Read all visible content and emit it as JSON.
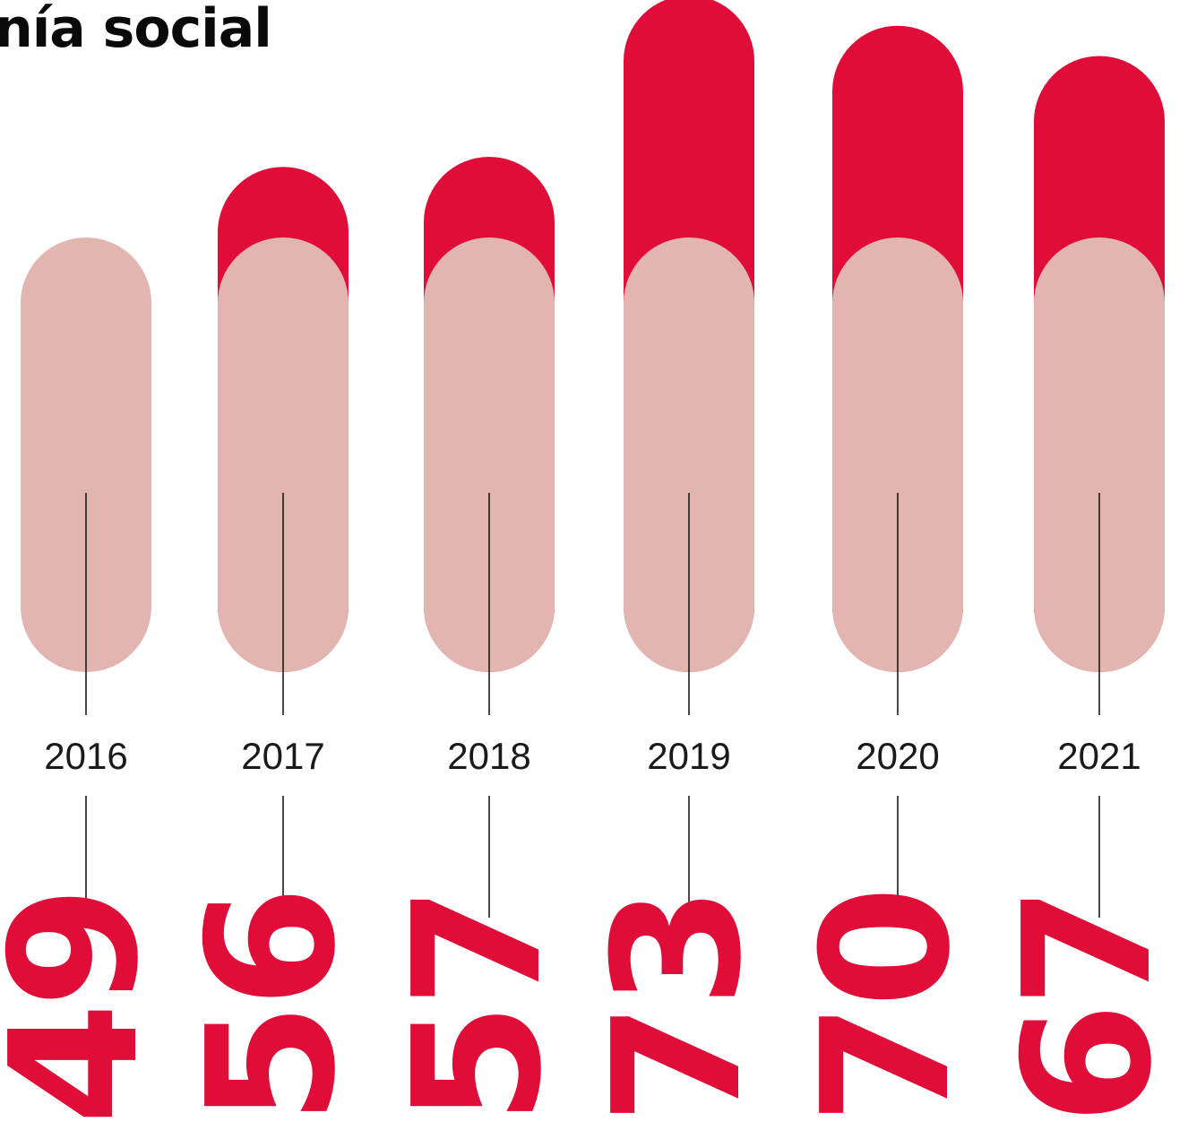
{
  "chart_data": {
    "type": "bar",
    "title": "nía social",
    "categories": [
      "2016",
      "2017",
      "2018",
      "2019",
      "2020",
      "2021"
    ],
    "values": [
      49,
      56,
      57,
      73,
      70,
      67
    ],
    "colors": {
      "value_bar": "#df0d38",
      "base_bar": "#e3b5b1",
      "value_text": "#df0d38",
      "leader_line": "#1a1a1a",
      "year_text": "#1a1a1a",
      "title_text": "#0a0a0a"
    }
  }
}
